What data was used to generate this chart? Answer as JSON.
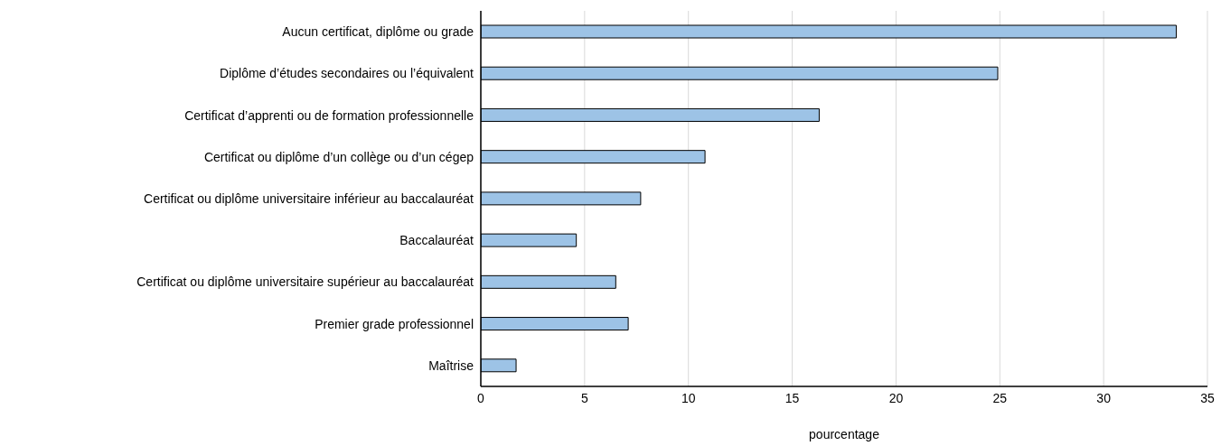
{
  "chart_data": {
    "type": "bar",
    "orientation": "horizontal",
    "xlabel": "pourcentage",
    "categories": [
      "Aucun certificat, diplôme ou grade",
      "Diplôme d’études secondaires ou l’équivalent",
      "Certificat d’apprenti ou de formation professionnelle",
      "Certificat ou diplôme d’un collège ou d’un cégep",
      "Certificat ou diplôme universitaire inférieur au baccalauréat",
      "Baccalauréat",
      "Certificat ou diplôme universitaire supérieur au baccalauréat",
      "Premier grade professionnel",
      "Maîtrise"
    ],
    "values": [
      33.5,
      24.9,
      16.3,
      10.8,
      7.7,
      4.6,
      6.5,
      7.1,
      1.7
    ],
    "color": "#9dc3e6",
    "xlim": [
      0,
      35
    ],
    "xticks": [
      0,
      5,
      10,
      15,
      20,
      25,
      30,
      35
    ],
    "grid": "x",
    "legend": false
  }
}
